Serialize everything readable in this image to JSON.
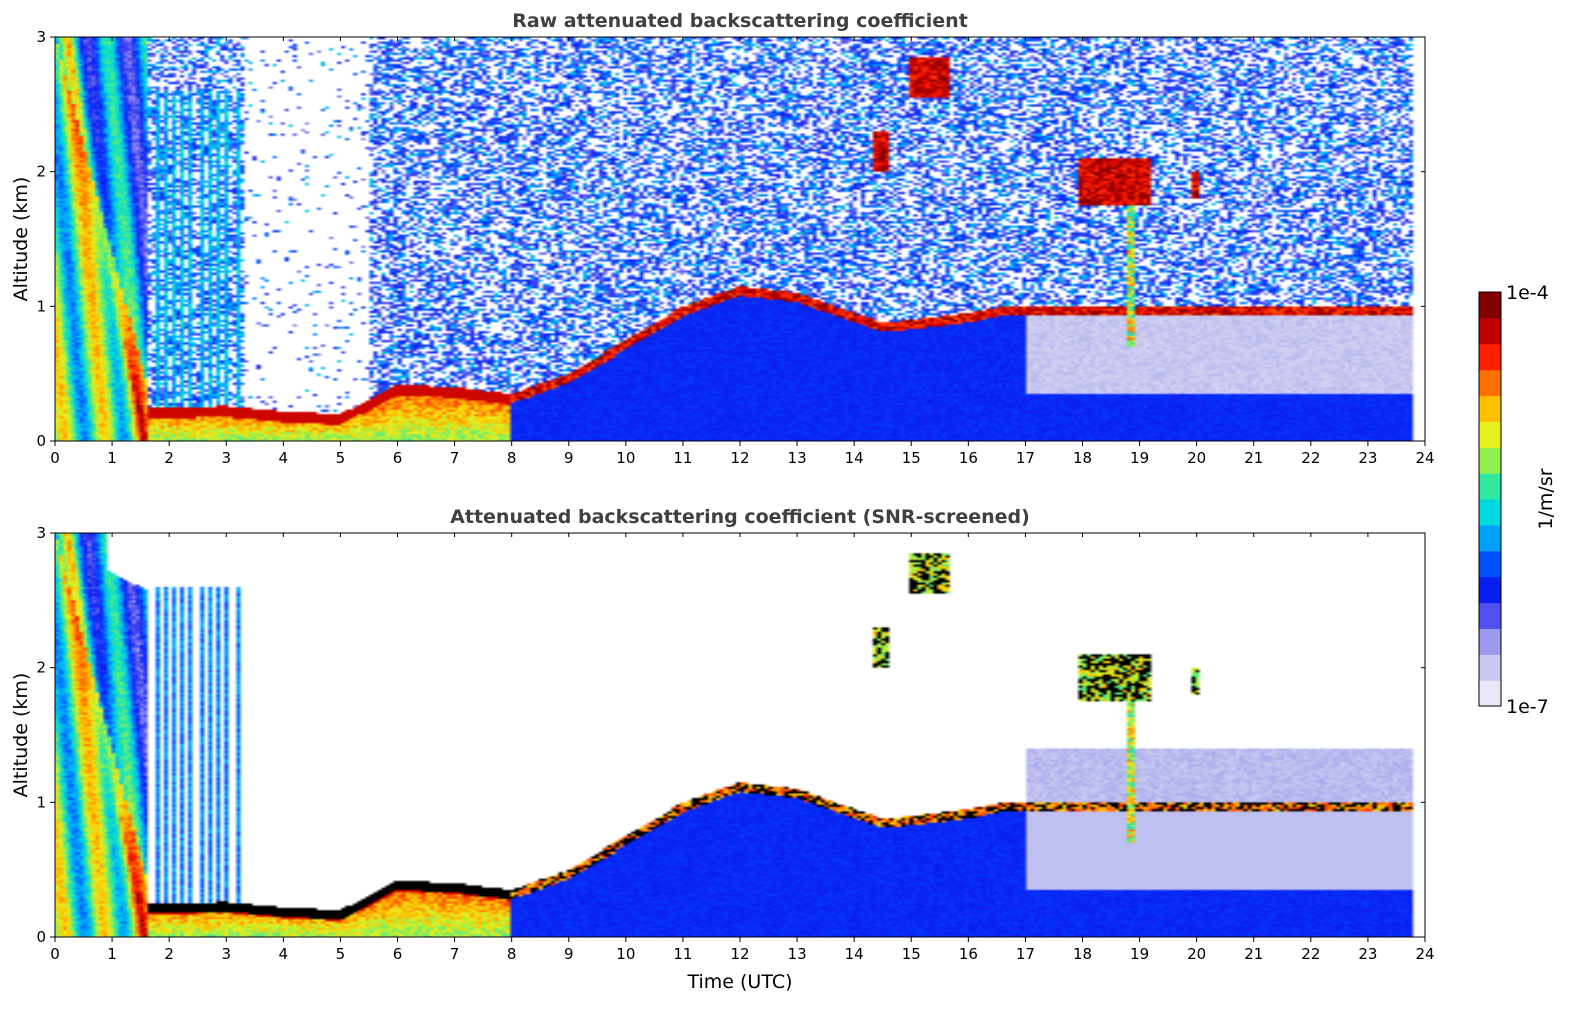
{
  "chart_data": [
    {
      "type": "heatmap",
      "title": "Raw attenuated backscattering coefficient",
      "xlabel": "",
      "ylabel": "Altitude (km)",
      "xlim": [
        0,
        24
      ],
      "ylim": [
        0,
        3
      ],
      "xticks": [
        "0",
        "1",
        "2",
        "3",
        "4",
        "5",
        "6",
        "7",
        "8",
        "9",
        "10",
        "11",
        "12",
        "13",
        "14",
        "15",
        "16",
        "17",
        "18",
        "19",
        "20",
        "21",
        "22",
        "23",
        "24"
      ],
      "yticks": [
        "0",
        "1",
        "2",
        "3"
      ],
      "features": [
        {
          "kind": "boundary_layer_top",
          "time_utc": [
            2.0,
            3.0,
            4.0,
            5.0,
            6.0,
            7.0,
            8.0,
            9.0,
            10.0,
            11.0,
            12.0,
            13.0,
            14.0,
            14.5,
            15.0,
            16.0,
            16.6
          ],
          "altitude_km": [
            0.25,
            0.26,
            0.22,
            0.2,
            0.42,
            0.4,
            0.35,
            0.5,
            0.75,
            1.0,
            1.15,
            1.1,
            0.95,
            0.88,
            0.9,
            0.95,
            1.0
          ]
        },
        {
          "kind": "cloud",
          "time_utc": [
            15.0,
            15.7
          ],
          "altitude_km": [
            2.55,
            2.85
          ]
        },
        {
          "kind": "cloud",
          "time_utc": [
            14.3,
            14.6
          ],
          "altitude_km": [
            2.0,
            2.3
          ]
        },
        {
          "kind": "cloud",
          "time_utc": [
            17.9,
            19.2
          ],
          "altitude_km": [
            1.75,
            2.1
          ]
        },
        {
          "kind": "cloud",
          "time_utc": [
            19.9,
            20.05
          ],
          "altitude_km": [
            1.8,
            2.0
          ]
        }
      ]
    },
    {
      "type": "heatmap",
      "title": "Attenuated backscattering coefficient (SNR-screened)",
      "xlabel": "Time (UTC)",
      "ylabel": "Altitude (km)",
      "xlim": [
        0,
        24
      ],
      "ylim": [
        0,
        3
      ],
      "xticks": [
        "0",
        "1",
        "2",
        "3",
        "4",
        "5",
        "6",
        "7",
        "8",
        "9",
        "10",
        "11",
        "12",
        "13",
        "14",
        "15",
        "16",
        "17",
        "18",
        "19",
        "20",
        "21",
        "22",
        "23",
        "24"
      ],
      "yticks": [
        "0",
        "1",
        "2",
        "3"
      ],
      "features": [
        {
          "kind": "boundary_layer_top",
          "time_utc": [
            2.0,
            3.0,
            4.0,
            5.0,
            6.0,
            7.0,
            8.0,
            9.0,
            10.0,
            11.0,
            12.0,
            13.0,
            14.0,
            14.5,
            15.0,
            16.0,
            16.6
          ],
          "altitude_km": [
            0.25,
            0.26,
            0.22,
            0.2,
            0.42,
            0.4,
            0.35,
            0.5,
            0.75,
            1.0,
            1.15,
            1.1,
            0.95,
            0.88,
            0.9,
            0.95,
            1.0
          ]
        },
        {
          "kind": "cloud",
          "time_utc": [
            15.0,
            15.7
          ],
          "altitude_km": [
            2.55,
            2.85
          ]
        },
        {
          "kind": "cloud",
          "time_utc": [
            14.3,
            14.6
          ],
          "altitude_km": [
            2.0,
            2.3
          ]
        },
        {
          "kind": "cloud",
          "time_utc": [
            17.9,
            19.2
          ],
          "altitude_km": [
            1.75,
            2.1
          ]
        },
        {
          "kind": "cloud",
          "time_utc": [
            19.9,
            20.05
          ],
          "altitude_km": [
            1.8,
            2.0
          ]
        }
      ]
    }
  ],
  "colorbar": {
    "label": "1/m/sr",
    "max_label": "1e-4",
    "min_label": "1e-7",
    "scale": "log",
    "range": [
      1e-07,
      0.0001
    ],
    "colormap": [
      "#e8e8f8",
      "#c8c8f0",
      "#9a9aee",
      "#5050f0",
      "#0a1ef0",
      "#0050ff",
      "#00a0ff",
      "#00d8e0",
      "#30e8a0",
      "#90f050",
      "#e8f020",
      "#ffc000",
      "#ff7000",
      "#ff2000",
      "#c00000",
      "#800000"
    ]
  }
}
